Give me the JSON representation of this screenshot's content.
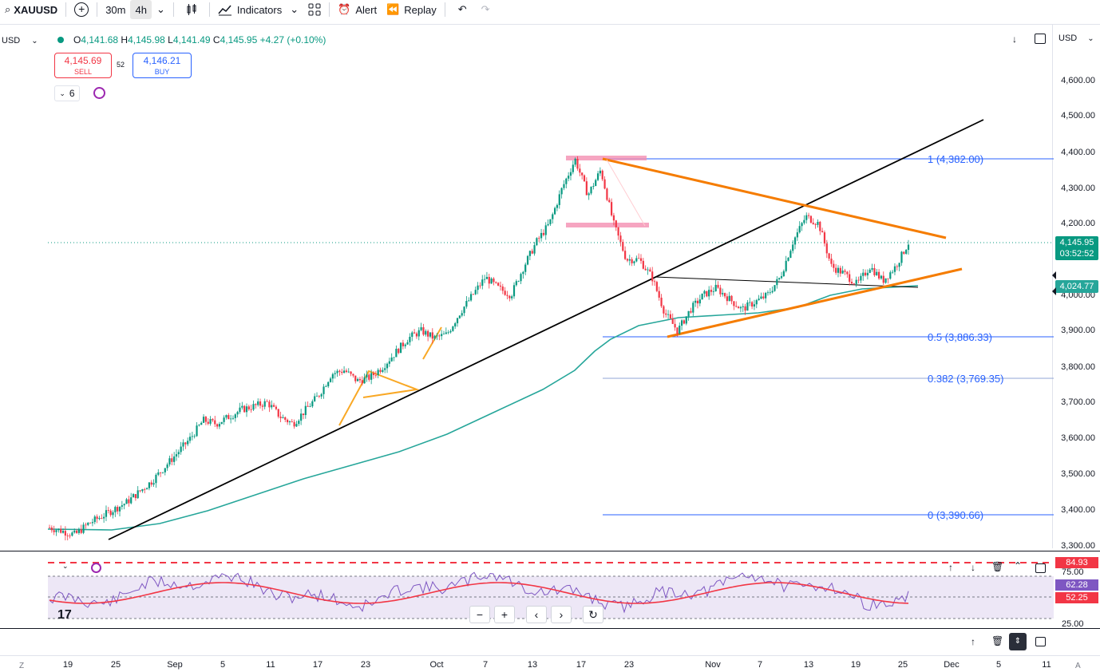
{
  "toolbar": {
    "symbol": "XAUUSD",
    "interval_30m": "30m",
    "interval_4h": "4h",
    "indicators": "Indicators",
    "alert": "Alert",
    "replay": "Replay"
  },
  "legend": {
    "currency": "USD",
    "open": "4,141.68",
    "high": "4,145.98",
    "low": "4,141.49",
    "close": "4,145.95",
    "change": "+4.27 (+0.10%)",
    "sell_price": "4,145.69",
    "sell_label": "SELL",
    "spread": "52",
    "buy_price": "4,146.21",
    "buy_label": "BUY",
    "indicator_count": "6"
  },
  "price_axis": {
    "currency": "USD",
    "ticks": [
      "4,600.00",
      "4,500.00",
      "4,400.00",
      "4,300.00",
      "4,200.00",
      "4,100.00",
      "4,000.00",
      "3,900.00",
      "3,800.00",
      "3,700.00",
      "3,600.00",
      "3,500.00",
      "3,400.00",
      "3,300.00"
    ],
    "last_price": "4,145.95",
    "countdown": "03:52:52",
    "ma_price": "4,024.77"
  },
  "fib_levels": {
    "l1": "1 (4,382.00)",
    "l05": "0.5 (3,886.33)",
    "l0382": "0.382 (3,769.35)",
    "l0": "0 (3,390.66)"
  },
  "rsi": {
    "upper": "84.93",
    "level75": "75.00",
    "rsi_value": "62.28",
    "ma_value": "52.25",
    "level25": "25.00"
  },
  "time_axis": [
    "19",
    "25",
    "Sep",
    "5",
    "11",
    "17",
    "23",
    "Oct",
    "7",
    "13",
    "17",
    "23",
    "Nov",
    "7",
    "13",
    "19",
    "25",
    "Dec",
    "5",
    "11"
  ],
  "colors": {
    "up": "#089981",
    "down": "#f23645",
    "ma": "#26a69a",
    "orange": "#f57c00",
    "fib": "#2962ff"
  },
  "chart_data": {
    "type": "candlestick",
    "symbol": "XAUUSD",
    "ylim": [
      3300,
      4650
    ],
    "approx_close_path": [
      3350,
      3340,
      3330,
      3360,
      3380,
      3400,
      3420,
      3450,
      3480,
      3520,
      3560,
      3600,
      3650,
      3640,
      3660,
      3680,
      3690,
      3700,
      3660,
      3640,
      3680,
      3720,
      3780,
      3790,
      3760,
      3770,
      3800,
      3840,
      3880,
      3900,
      3880,
      3890,
      3950,
      4000,
      4050,
      4020,
      4000,
      4080,
      4150,
      4200,
      4300,
      4380,
      4280,
      4350,
      4200,
      4100,
      4100,
      4050,
      3950,
      3900,
      3960,
      4000,
      4020,
      3990,
      3960,
      3980,
      4000,
      4050,
      4150,
      4220,
      4200,
      4080,
      4060,
      4030,
      4080,
      4040,
      4080,
      4146
    ],
    "ma_points": [
      3340,
      3345,
      3355,
      3370,
      3390,
      3410,
      3430,
      3450,
      3470,
      3490,
      3510,
      3530,
      3560,
      3590,
      3630,
      3690,
      3760,
      3850,
      3880,
      3900,
      3920,
      3950,
      3970,
      3990,
      4010,
      4025
    ]
  }
}
